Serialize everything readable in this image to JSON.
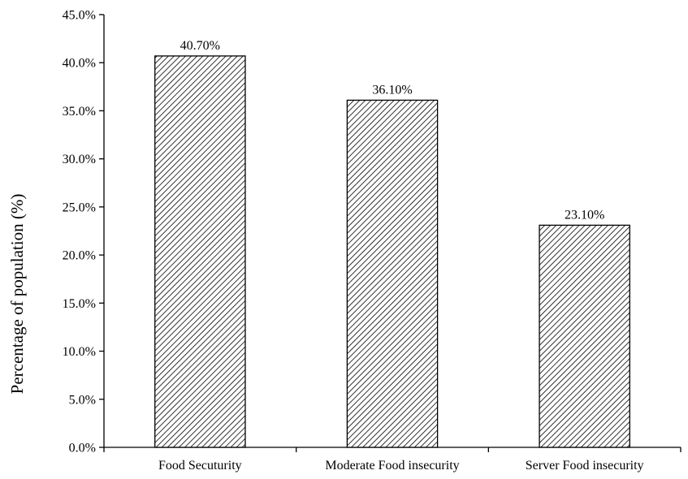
{
  "chart_data": {
    "type": "bar",
    "categories": [
      "Food Secuturity",
      "Moderate Food insecurity",
      "Server Food insecurity"
    ],
    "values": [
      40.7,
      36.1,
      23.1
    ],
    "data_labels": [
      "40.70%",
      "36.10%",
      "23.10%"
    ],
    "title": "",
    "xlabel": "",
    "ylabel": "Percentage of population (%)",
    "ylim": [
      0,
      45
    ],
    "yticks": [
      0,
      5,
      10,
      15,
      20,
      25,
      30,
      35,
      40,
      45
    ],
    "ytick_labels": [
      "0.0%",
      "5.0%",
      "10.0%",
      "15.0%",
      "20.0%",
      "25.0%",
      "30.0%",
      "35.0%",
      "40.0%",
      "45.0%"
    ],
    "grid": false,
    "legend": "none",
    "bar_fill": "diagonal-hatch",
    "bar_stroke_color": "#000000"
  }
}
